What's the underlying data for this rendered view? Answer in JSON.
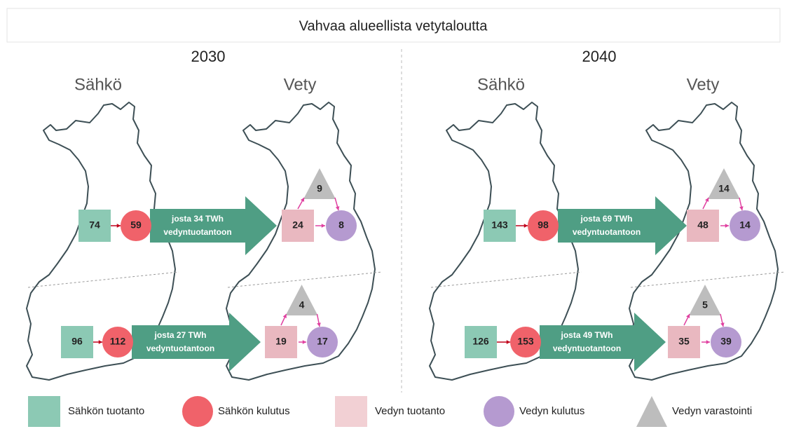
{
  "title": "Vahvaa alueellista vetytaloutta",
  "panels": [
    {
      "year": "2030",
      "left_label": "Sähkö",
      "right_label": "Vety",
      "regions": [
        {
          "electricity_production": 74,
          "electricity_consumption": 59,
          "arrow_text": [
            "josta 34 TWh",
            "vedyntuotantoon"
          ],
          "hydrogen_production": 24,
          "hydrogen_storage": 9,
          "hydrogen_consumption": 8
        },
        {
          "electricity_production": 96,
          "electricity_consumption": 112,
          "arrow_text": [
            "josta 27 TWh",
            "vedyntuotantoon"
          ],
          "hydrogen_production": 19,
          "hydrogen_storage": 4,
          "hydrogen_consumption": 17
        }
      ]
    },
    {
      "year": "2040",
      "left_label": "Sähkö",
      "right_label": "Vety",
      "regions": [
        {
          "electricity_production": 143,
          "electricity_consumption": 98,
          "arrow_text": [
            "josta 69 TWh",
            "vedyntuotantoon"
          ],
          "hydrogen_production": 48,
          "hydrogen_storage": 14,
          "hydrogen_consumption": 14
        },
        {
          "electricity_production": 126,
          "electricity_consumption": 153,
          "arrow_text": [
            "josta 49 TWh",
            "vedyntuotantoon"
          ],
          "hydrogen_production": 35,
          "hydrogen_storage": 5,
          "hydrogen_consumption": 39
        }
      ]
    }
  ],
  "legend": [
    "Sähkön tuotanto",
    "Sähkön kulutus",
    "Vedyn tuotanto",
    "Vedyn kulutus",
    "Vedyn varastointi"
  ]
}
